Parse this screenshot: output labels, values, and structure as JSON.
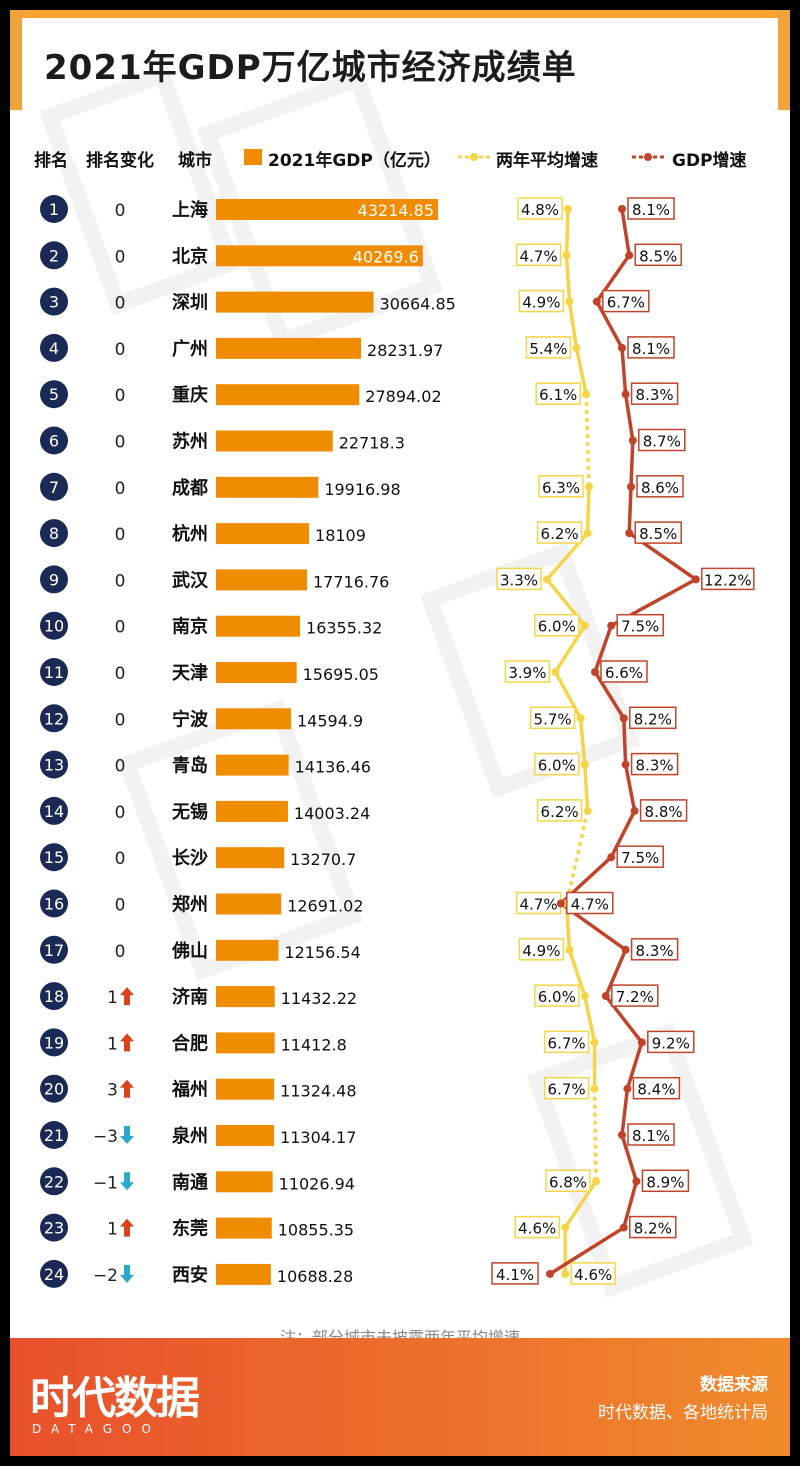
{
  "title": "2021年GDP万亿城市经济成绩单",
  "headers": {
    "rank": "排名",
    "rank_change": "排名变化",
    "city": "城市",
    "legend_gdp": "2021年GDP（亿元）",
    "legend_avg": "两年平均增速",
    "legend_growth": "GDP增速"
  },
  "colors": {
    "gdp_bar": "#f08c00",
    "avg_line": "#f5d547",
    "growth_line": "#c0432a",
    "rank_circle": "#1b2a55",
    "up_arrow": "#d9441c",
    "down_arrow": "#2aa9c9"
  },
  "chart_data": {
    "type": "bar",
    "series": [
      {
        "name": "2021年GDP（亿元）",
        "values": [
          43214.85,
          40269.6,
          30664.85,
          28231.97,
          27894.02,
          22718.3,
          19916.98,
          18109,
          17716.76,
          16355.32,
          15695.05,
          14594.9,
          14136.46,
          14003.24,
          13270.7,
          12691.02,
          12156.54,
          11432.22,
          11412.8,
          11324.48,
          11304.17,
          11026.94,
          10855.35,
          10688.28
        ]
      },
      {
        "name": "两年平均增速",
        "values": [
          4.8,
          4.7,
          4.9,
          5.4,
          6.1,
          null,
          6.3,
          6.2,
          3.3,
          6.0,
          3.9,
          5.7,
          6.0,
          6.2,
          null,
          4.7,
          4.9,
          6.0,
          6.7,
          6.7,
          null,
          6.8,
          4.6,
          4.6
        ]
      },
      {
        "name": "GDP增速",
        "values": [
          8.1,
          8.5,
          6.7,
          8.1,
          8.3,
          8.7,
          8.6,
          8.5,
          12.2,
          7.5,
          6.6,
          8.2,
          8.3,
          8.8,
          7.5,
          4.7,
          8.3,
          7.2,
          9.2,
          8.4,
          8.1,
          8.9,
          8.2,
          4.1
        ]
      }
    ],
    "rows": [
      {
        "rank": "1",
        "change": "0",
        "dir": "none",
        "city": "上海",
        "gdp": "43214.85",
        "avg": "4.8%",
        "growth": "8.1%"
      },
      {
        "rank": "2",
        "change": "0",
        "dir": "none",
        "city": "北京",
        "gdp": "40269.6",
        "avg": "4.7%",
        "growth": "8.5%"
      },
      {
        "rank": "3",
        "change": "0",
        "dir": "none",
        "city": "深圳",
        "gdp": "30664.85",
        "avg": "4.9%",
        "growth": "6.7%"
      },
      {
        "rank": "4",
        "change": "0",
        "dir": "none",
        "city": "广州",
        "gdp": "28231.97",
        "avg": "5.4%",
        "growth": "8.1%"
      },
      {
        "rank": "5",
        "change": "0",
        "dir": "none",
        "city": "重庆",
        "gdp": "27894.02",
        "avg": "6.1%",
        "growth": "8.3%"
      },
      {
        "rank": "6",
        "change": "0",
        "dir": "none",
        "city": "苏州",
        "gdp": "22718.3",
        "avg": "",
        "growth": "8.7%"
      },
      {
        "rank": "7",
        "change": "0",
        "dir": "none",
        "city": "成都",
        "gdp": "19916.98",
        "avg": "6.3%",
        "growth": "8.6%"
      },
      {
        "rank": "8",
        "change": "0",
        "dir": "none",
        "city": "杭州",
        "gdp": "18109",
        "avg": "6.2%",
        "growth": "8.5%"
      },
      {
        "rank": "9",
        "change": "0",
        "dir": "none",
        "city": "武汉",
        "gdp": "17716.76",
        "avg": "3.3%",
        "growth": "12.2%"
      },
      {
        "rank": "10",
        "change": "0",
        "dir": "none",
        "city": "南京",
        "gdp": "16355.32",
        "avg": "6.0%",
        "growth": "7.5%"
      },
      {
        "rank": "11",
        "change": "0",
        "dir": "none",
        "city": "天津",
        "gdp": "15695.05",
        "avg": "3.9%",
        "growth": "6.6%"
      },
      {
        "rank": "12",
        "change": "0",
        "dir": "none",
        "city": "宁波",
        "gdp": "14594.9",
        "avg": "5.7%",
        "growth": "8.2%"
      },
      {
        "rank": "13",
        "change": "0",
        "dir": "none",
        "city": "青岛",
        "gdp": "14136.46",
        "avg": "6.0%",
        "growth": "8.3%"
      },
      {
        "rank": "14",
        "change": "0",
        "dir": "none",
        "city": "无锡",
        "gdp": "14003.24",
        "avg": "6.2%",
        "growth": "8.8%"
      },
      {
        "rank": "15",
        "change": "0",
        "dir": "none",
        "city": "长沙",
        "gdp": "13270.7",
        "avg": "",
        "growth": "7.5%"
      },
      {
        "rank": "16",
        "change": "0",
        "dir": "none",
        "city": "郑州",
        "gdp": "12691.02",
        "avg": "4.7%",
        "growth": "4.7%"
      },
      {
        "rank": "17",
        "change": "0",
        "dir": "none",
        "city": "佛山",
        "gdp": "12156.54",
        "avg": "4.9%",
        "growth": "8.3%"
      },
      {
        "rank": "18",
        "change": "1",
        "dir": "up",
        "city": "济南",
        "gdp": "11432.22",
        "avg": "6.0%",
        "growth": "7.2%"
      },
      {
        "rank": "19",
        "change": "1",
        "dir": "up",
        "city": "合肥",
        "gdp": "11412.8",
        "avg": "6.7%",
        "growth": "9.2%"
      },
      {
        "rank": "20",
        "change": "3",
        "dir": "up",
        "city": "福州",
        "gdp": "11324.48",
        "avg": "6.7%",
        "growth": "8.4%"
      },
      {
        "rank": "21",
        "change": "−3",
        "dir": "down",
        "city": "泉州",
        "gdp": "11304.17",
        "avg": "",
        "growth": "8.1%"
      },
      {
        "rank": "22",
        "change": "−1",
        "dir": "down",
        "city": "南通",
        "gdp": "11026.94",
        "avg": "6.8%",
        "growth": "8.9%"
      },
      {
        "rank": "23",
        "change": "1",
        "dir": "up",
        "city": "东莞",
        "gdp": "10855.35",
        "avg": "4.6%",
        "growth": "8.2%"
      },
      {
        "rank": "24",
        "change": "−2",
        "dir": "down",
        "city": "西安",
        "gdp": "10688.28",
        "avg": "4.6%",
        "growth": "4.1%"
      }
    ]
  },
  "note": "注：部分城市未披露两年平均增速",
  "footer": {
    "logo": "时代数据",
    "logo_sub": "DATAGOO",
    "source_title": "数据来源",
    "source_text": "时代数据、各地统计局"
  }
}
